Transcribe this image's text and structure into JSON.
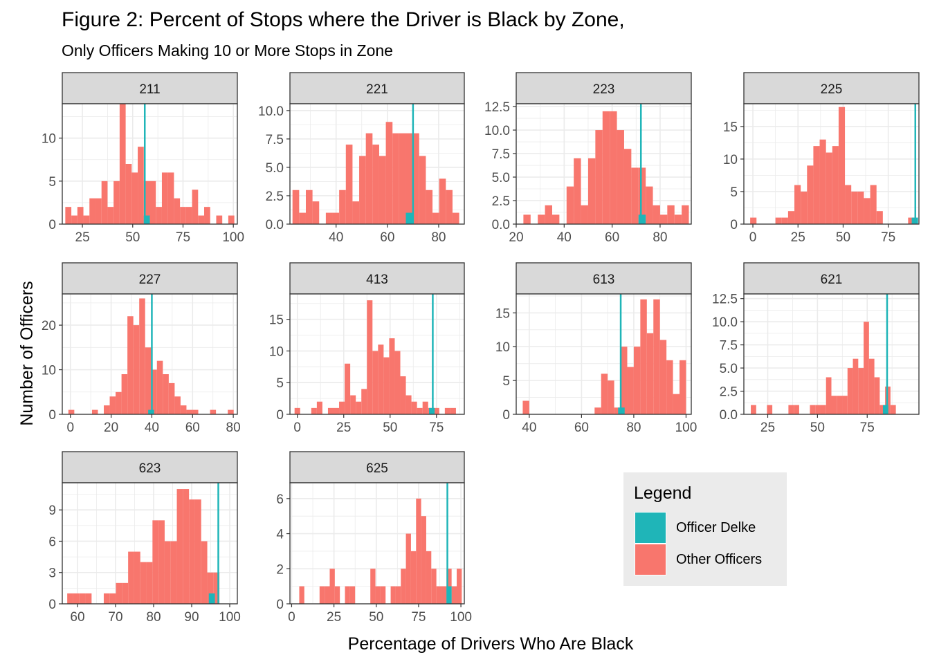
{
  "figure": {
    "title": "Figure 2: Percent of Stops where the Driver is Black by Zone,",
    "subtitle": "Only Officers Making 10 or More Stops in Zone",
    "xlabel": "Percentage of Drivers Who Are Black",
    "ylabel": "Number of Officers"
  },
  "colors": {
    "other_officers": "#F8766D",
    "officer_delke": "#1FB5B8",
    "strip_fill": "#d9d9d9",
    "grid": "#ebebeb",
    "legend_bg": "#ebebeb"
  },
  "legend": {
    "title": "Legend",
    "items": [
      {
        "label": "Officer Delke",
        "color": "#1FB5B8"
      },
      {
        "label": "Other Officers",
        "color": "#F8766D"
      }
    ]
  },
  "chart_data": [
    {
      "type": "bar",
      "panel": "211",
      "xlim": [
        15,
        102
      ],
      "ylim": [
        0,
        14
      ],
      "xticks": [
        25,
        50,
        75,
        100
      ],
      "yticks": [
        0,
        5,
        10
      ],
      "bin_width": 3,
      "bins_start": [
        16.5,
        19.5,
        22.5,
        25.5,
        28.5,
        31.5,
        34.5,
        37.5,
        40.5,
        43.5,
        46.5,
        49.5,
        52.5,
        55.5,
        58.5,
        61.5,
        64.5,
        67.5,
        70.5,
        73.5,
        76.5,
        79.5,
        82.5,
        85.5,
        88.5,
        91.5,
        94.5,
        97.5
      ],
      "other_officers": [
        2,
        1,
        2,
        1,
        3,
        3,
        5,
        2,
        5,
        14,
        7,
        6,
        9,
        5,
        5,
        2,
        6,
        6,
        3,
        2,
        2,
        4,
        1,
        2,
        0,
        1,
        0,
        1
      ],
      "delke_bin": [
        55.5,
        1
      ],
      "delke_value": 56
    },
    {
      "type": "bar",
      "panel": "221",
      "xlim": [
        22,
        90
      ],
      "ylim": [
        0,
        10.6
      ],
      "xticks": [
        20,
        40,
        60,
        80
      ],
      "yticks": [
        0,
        2.5,
        5,
        7.5,
        10
      ],
      "ytick_labels": [
        "0.0",
        "2.5",
        "5.0",
        "7.5",
        "10.0"
      ],
      "bin_width": 2.6,
      "bins_start": [
        23,
        25.6,
        28.2,
        30.8,
        33.4,
        36,
        38.6,
        41.2,
        43.8,
        46.4,
        49,
        51.6,
        54.2,
        56.8,
        59.4,
        62,
        64.6,
        67.2,
        69.8,
        72.4,
        75,
        77.6,
        80.2,
        82.8,
        85.4
      ],
      "other_officers": [
        3,
        1,
        3,
        2,
        0,
        1,
        1,
        3,
        7,
        2,
        6,
        8,
        7,
        6,
        9,
        8,
        8,
        8,
        8,
        6,
        3,
        1,
        4,
        3,
        1
      ],
      "delke_bin": [
        67.2,
        1
      ],
      "delke_value": 70
    },
    {
      "type": "bar",
      "panel": "223",
      "xlim": [
        20,
        93
      ],
      "ylim": [
        0,
        12.8
      ],
      "xticks": [
        20,
        40,
        60,
        80
      ],
      "yticks": [
        0,
        2.5,
        5,
        7.5,
        10,
        12.5
      ],
      "ytick_labels": [
        "0.0",
        "2.5",
        "5.0",
        "7.5",
        "10.0",
        "12.5"
      ],
      "bin_width": 3,
      "bins_start": [
        23,
        26,
        29,
        32,
        35,
        38,
        41,
        44,
        47,
        50,
        53,
        56,
        59,
        62,
        65,
        68,
        71,
        74,
        77,
        80,
        83,
        86,
        89
      ],
      "other_officers": [
        1,
        0,
        1,
        2,
        1,
        0,
        4,
        7,
        2,
        7,
        10,
        12,
        12,
        10,
        8,
        6,
        6,
        4,
        2,
        1,
        2,
        1,
        2
      ],
      "delke_bin": [
        71,
        1
      ],
      "delke_value": 72
    },
    {
      "type": "bar",
      "panel": "225",
      "xlim": [
        -5,
        92
      ],
      "ylim": [
        0,
        18.5
      ],
      "xticks": [
        0,
        25,
        50,
        75
      ],
      "yticks": [
        0,
        5,
        10,
        15
      ],
      "bin_width": 3.5,
      "bins_start": [
        -1.5,
        2,
        5.5,
        9,
        12.5,
        16,
        19.5,
        23,
        26.5,
        30,
        33.5,
        37,
        40.5,
        44,
        47.5,
        51,
        54.5,
        58,
        61.5,
        65,
        68.5,
        72,
        75.5,
        79,
        82.5,
        86
      ],
      "other_officers": [
        1,
        0,
        0,
        0,
        1,
        1,
        2,
        6,
        5,
        9,
        12,
        13,
        11,
        12,
        18,
        6,
        5,
        5,
        4,
        6,
        2,
        0,
        0,
        0,
        0,
        1
      ],
      "delke_bin": [
        88,
        1
      ],
      "delke_value": 90
    },
    {
      "type": "bar",
      "panel": "227",
      "xlim": [
        -4,
        82
      ],
      "ylim": [
        0,
        27
      ],
      "xticks": [
        0,
        20,
        40,
        60,
        80
      ],
      "yticks": [
        0,
        10,
        20
      ],
      "bin_width": 2.9,
      "bins_start": [
        -1,
        1.9,
        4.8,
        7.7,
        10.6,
        13.5,
        16.4,
        19.3,
        22.2,
        25.1,
        28,
        30.9,
        33.8,
        36.7,
        39.6,
        42.5,
        45.4,
        48.3,
        51.2,
        54.1,
        57,
        59.9,
        62.8,
        65.7,
        68.6,
        71.5,
        74.4,
        77.3
      ],
      "other_officers": [
        1,
        0,
        0,
        0,
        1,
        0,
        2,
        4,
        5,
        9,
        22,
        20,
        26,
        15,
        10,
        12,
        9,
        7,
        4,
        2,
        1,
        1,
        0,
        0,
        1,
        0,
        0,
        1
      ],
      "delke_bin": [
        38.2,
        1
      ],
      "delke_value": 40
    },
    {
      "type": "bar",
      "panel": "413",
      "xlim": [
        -4,
        90
      ],
      "ylim": [
        0,
        19
      ],
      "xticks": [
        0,
        25,
        50,
        75
      ],
      "yticks": [
        0,
        5,
        10,
        15
      ],
      "bin_width": 3,
      "bins_start": [
        -1.5,
        1.5,
        4.5,
        7.5,
        10.5,
        13.5,
        16.5,
        19.5,
        22.5,
        25.5,
        28.5,
        31.5,
        34.5,
        37.5,
        40.5,
        43.5,
        46.5,
        49.5,
        52.5,
        55.5,
        58.5,
        61.5,
        64.5,
        67.5,
        70.5,
        73.5,
        76.5,
        79.5,
        82.5
      ],
      "other_officers": [
        1,
        0,
        0,
        1,
        2,
        0,
        1,
        1,
        2,
        8,
        3,
        2,
        4,
        18,
        10,
        11,
        9,
        12,
        10,
        6,
        3,
        2,
        1,
        2,
        1,
        1,
        0,
        1,
        1
      ],
      "delke_bin": [
        71,
        1
      ],
      "delke_value": 73
    },
    {
      "type": "bar",
      "panel": "613",
      "xlim": [
        35,
        102
      ],
      "ylim": [
        0,
        17.8
      ],
      "xticks": [
        40,
        60,
        80,
        100
      ],
      "yticks": [
        0,
        5,
        10,
        15
      ],
      "bin_width": 2.5,
      "bins_start": [
        37.5,
        40,
        42.5,
        45,
        47.5,
        50,
        52.5,
        55,
        57.5,
        60,
        62.5,
        65,
        67.5,
        70,
        72.5,
        75,
        77.5,
        80,
        82.5,
        85,
        87.5,
        90,
        92.5,
        95,
        97.5
      ],
      "other_officers": [
        2,
        0,
        0,
        0,
        0,
        0,
        0,
        0,
        0,
        0,
        0,
        1,
        6,
        5,
        1,
        10,
        7,
        10,
        17,
        12,
        17,
        11,
        8,
        3,
        8
      ],
      "delke_bin": [
        74,
        1
      ],
      "delke_value": 75
    },
    {
      "type": "bar",
      "panel": "621",
      "xlim": [
        13,
        101
      ],
      "ylim": [
        0,
        13
      ],
      "xticks": [
        25,
        50,
        75
      ],
      "yticks": [
        0,
        2.5,
        5,
        7.5,
        10,
        12.5
      ],
      "ytick_labels": [
        "0.0",
        "2.5",
        "5.0",
        "7.5",
        "10.0",
        "12.5"
      ],
      "bin_width": 2.7,
      "bins_start": [
        16.5,
        19.2,
        21.9,
        24.6,
        27.3,
        30,
        32.7,
        35.4,
        38.1,
        40.8,
        43.5,
        46.2,
        48.9,
        51.6,
        54.3,
        57,
        59.7,
        62.4,
        65.1,
        67.8,
        70.5,
        73.2,
        75.9,
        78.6,
        81.3,
        84,
        86.7,
        89.4,
        92.1
      ],
      "other_officers": [
        1,
        0,
        0,
        1,
        0,
        0,
        0,
        1,
        1,
        0,
        0,
        1,
        1,
        1,
        4,
        2,
        2,
        2,
        5,
        6,
        5,
        10,
        6,
        4,
        1,
        3,
        1,
        0,
        0
      ],
      "delke_bin": [
        82.9,
        1
      ],
      "delke_value": 85
    },
    {
      "type": "bar",
      "panel": "623",
      "xlim": [
        56,
        102
      ],
      "ylim": [
        0,
        11.6
      ],
      "xticks": [
        60,
        70,
        80,
        90,
        100
      ],
      "yticks": [
        0,
        3,
        6,
        9
      ],
      "bin_width": 1.6,
      "bins_start": [
        57.3,
        58.9,
        60.5,
        62.1,
        63.7,
        65.3,
        66.9,
        68.5,
        70.1,
        71.7,
        73.3,
        74.9,
        76.5,
        78.1,
        79.7,
        81.3,
        82.9,
        84.5,
        86.1,
        87.7,
        89.3,
        90.9,
        92.5,
        94.1,
        95.7
      ],
      "other_officers": [
        1,
        1,
        1,
        1,
        0,
        0,
        1,
        1,
        2,
        2,
        5,
        5,
        4,
        4,
        8,
        8,
        6,
        6,
        11,
        11,
        10,
        10,
        6,
        3,
        3
      ],
      "delke_bin": [
        94.5,
        1
      ],
      "delke_value": 97
    },
    {
      "type": "bar",
      "panel": "625",
      "xlim": [
        -1,
        102
      ],
      "ylim": [
        0,
        6.9
      ],
      "xticks": [
        0,
        25,
        50,
        75,
        100
      ],
      "yticks": [
        0,
        2,
        4,
        6
      ],
      "bin_width": 3,
      "bins_start": [
        4.5,
        7.5,
        10.5,
        13.5,
        16.5,
        19.5,
        22.5,
        25.5,
        28.5,
        31.5,
        34.5,
        37.5,
        40.5,
        43.5,
        46.5,
        49.5,
        52.5,
        55.5,
        58.5,
        61.5,
        64.5,
        67.5,
        70.5,
        73.5,
        76.5,
        79.5,
        82.5,
        85.5,
        88.5,
        91.5,
        94.5,
        97.5
      ],
      "other_officers": [
        1,
        0,
        0,
        0,
        1,
        1,
        2,
        1,
        0,
        1,
        1,
        0,
        0,
        0,
        2,
        1,
        1,
        0,
        1,
        1,
        2,
        4,
        3,
        6,
        5,
        3,
        2,
        1,
        1,
        2,
        1,
        2
      ],
      "delke_bin": [
        91.5,
        1
      ],
      "delke_value": 92
    }
  ]
}
